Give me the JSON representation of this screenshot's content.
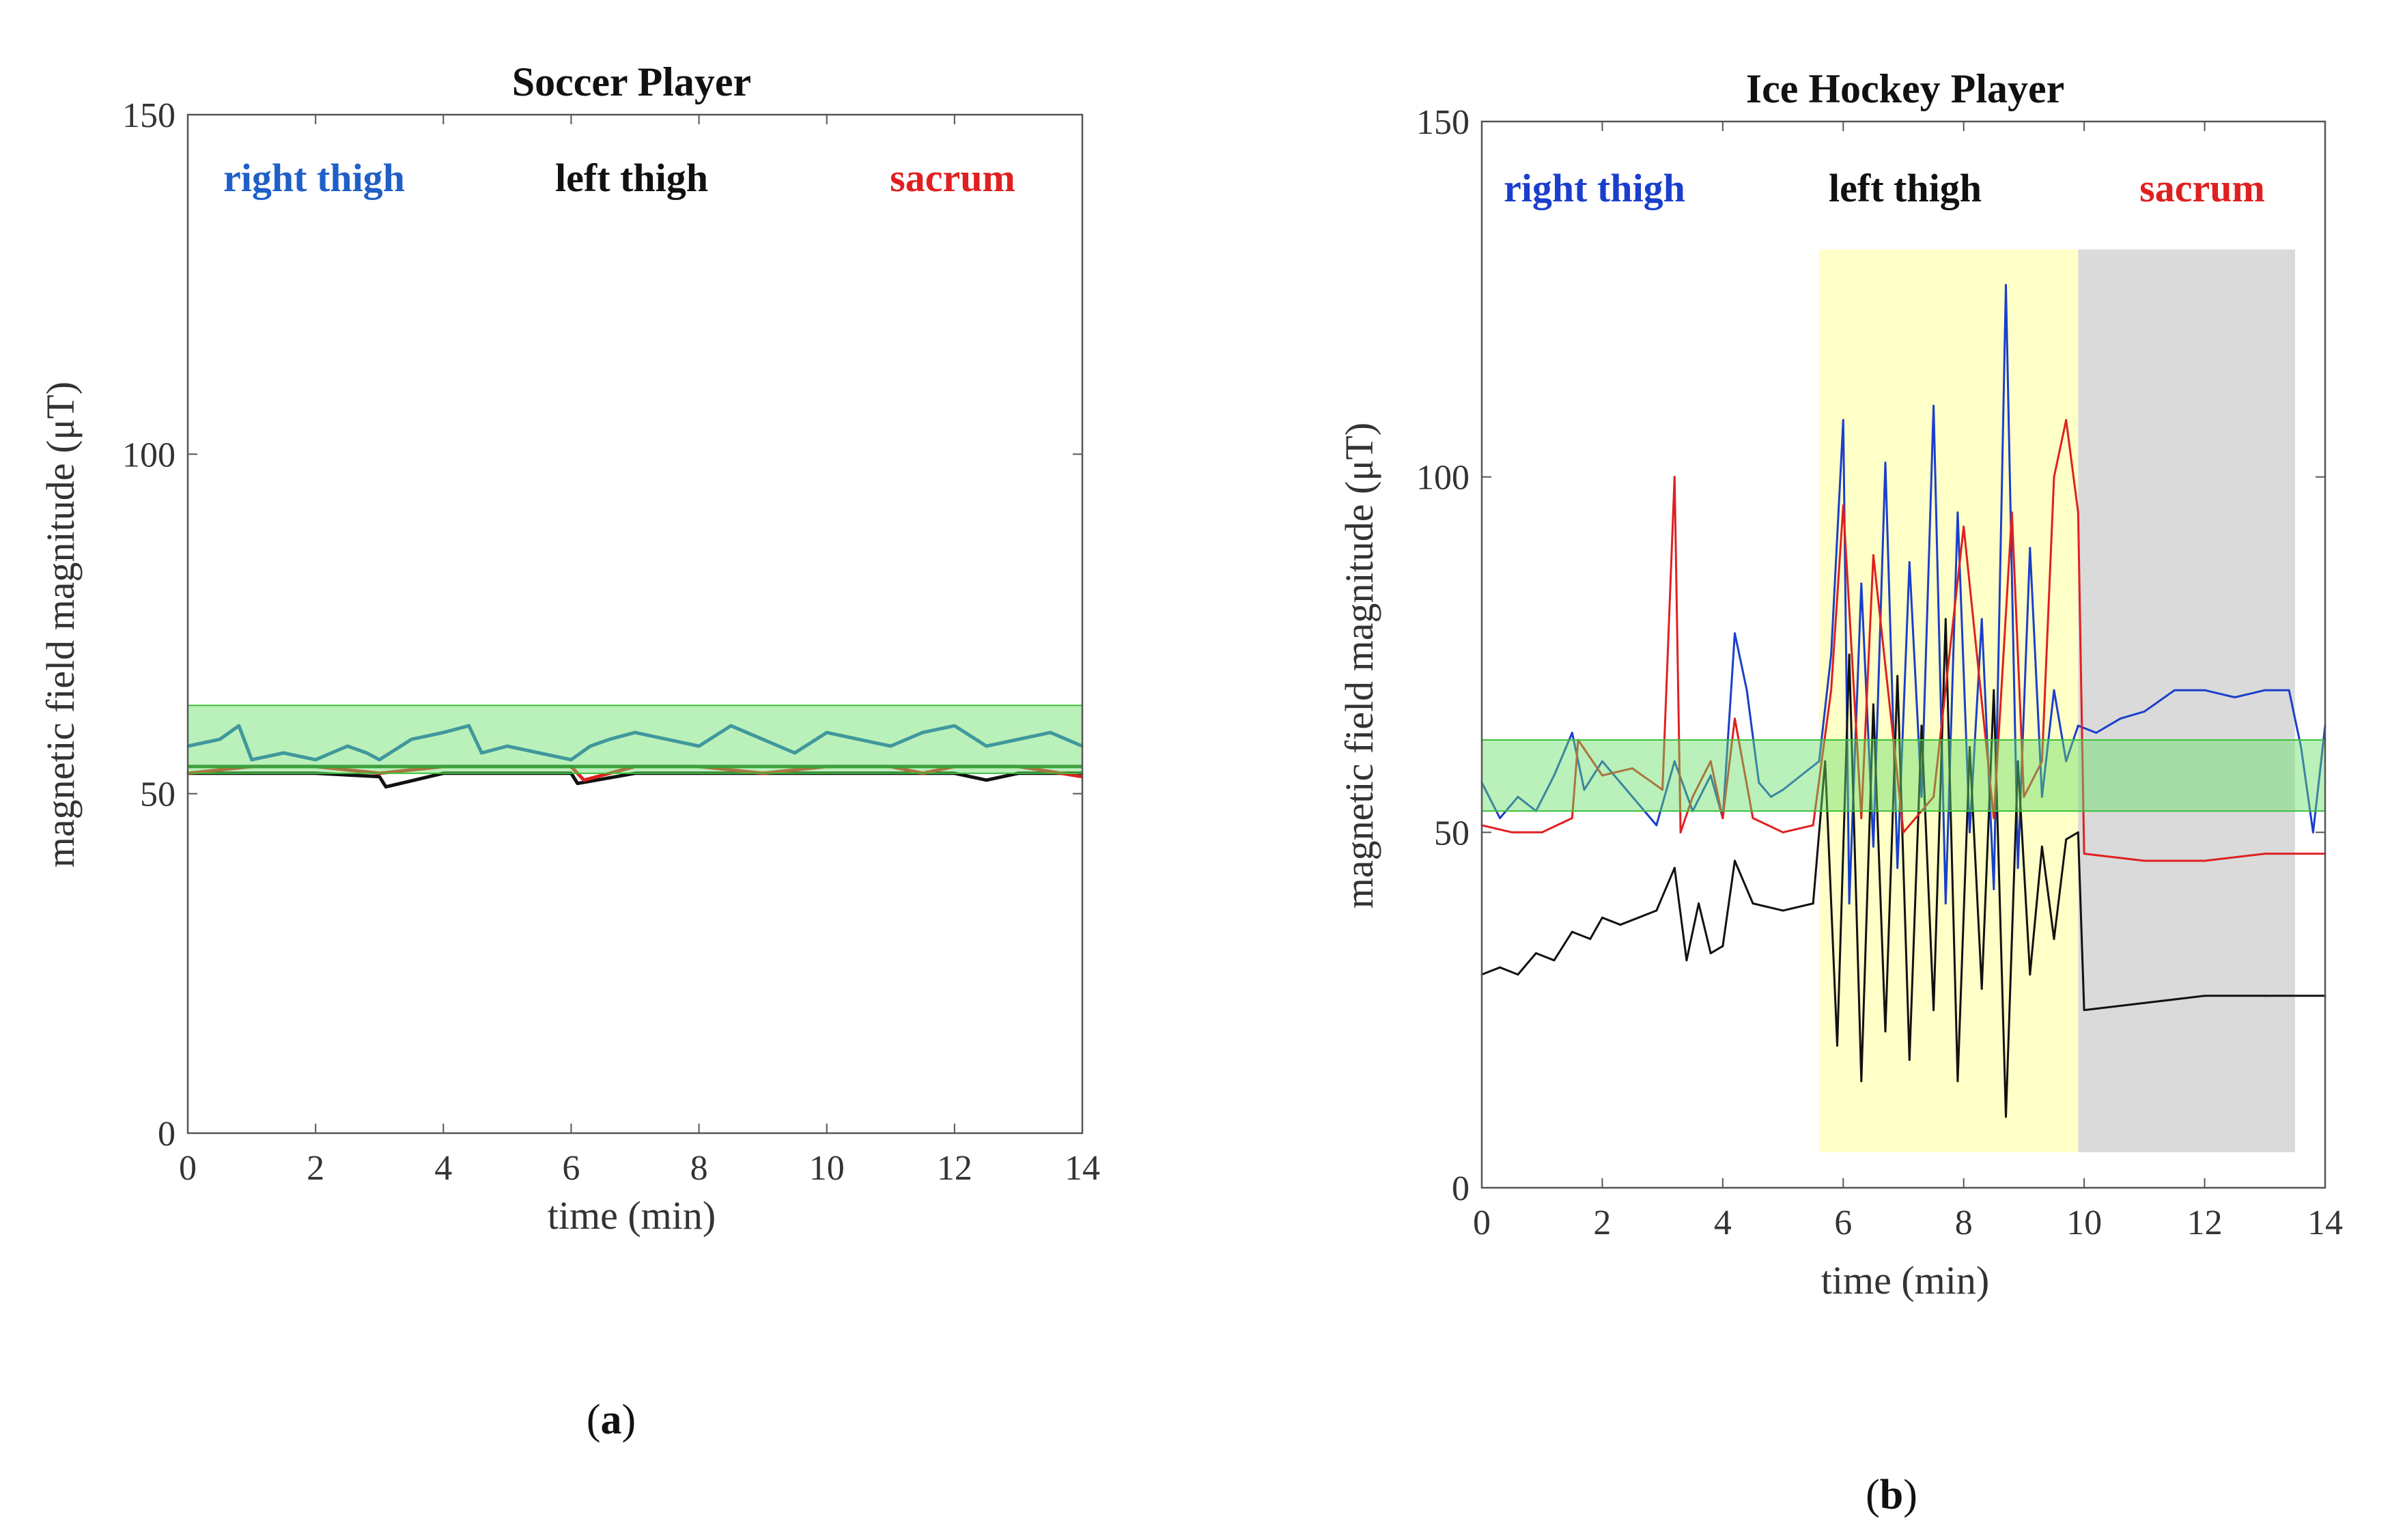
{
  "figure": {
    "panels": [
      {
        "label_open": "(",
        "label_letter": "a",
        "label_close": ")"
      },
      {
        "label_open": "(",
        "label_letter": "b",
        "label_close": ")"
      }
    ]
  },
  "colors": {
    "right_thigh": "#1a3fcc",
    "left_thigh": "#111111",
    "sacrum": "#e02020",
    "overlap": "#a0521f",
    "soccer_right": "#1f5fc8",
    "soccer_mean": "#1a6e1a",
    "normal_band": "#66dd66",
    "yellow_region": "#ffffc8",
    "gray_region": "#dadada"
  },
  "chart_data": [
    {
      "type": "line",
      "title": "Soccer Player",
      "xlabel": "time (min)",
      "ylabel": "magnetic field magnitude (μT)",
      "xlim": [
        0,
        14
      ],
      "ylim": [
        0,
        150
      ],
      "xticks": [
        0,
        2,
        4,
        6,
        8,
        10,
        12,
        14
      ],
      "yticks": [
        0,
        50,
        100,
        150
      ],
      "legend": [
        "right thigh",
        "left thigh",
        "sacrum"
      ],
      "bands": [
        {
          "name": "normal range",
          "y0": 53,
          "y1": 63
        }
      ],
      "regions": [],
      "series": [
        {
          "name": "right thigh",
          "x": [
            0,
            0.5,
            0.8,
            1,
            1.5,
            2,
            2.5,
            2.8,
            3,
            3.5,
            4,
            4.4,
            4.6,
            5,
            5.5,
            6,
            6.3,
            6.6,
            7,
            7.5,
            8,
            8.5,
            9,
            9.5,
            10,
            10.5,
            11,
            11.5,
            12,
            12.5,
            13,
            13.5,
            14
          ],
          "values": [
            57,
            58,
            60,
            55,
            56,
            55,
            57,
            56,
            55,
            58,
            59,
            60,
            56,
            57,
            56,
            55,
            57,
            58,
            59,
            58,
            57,
            60,
            58,
            56,
            59,
            58,
            57,
            59,
            60,
            57,
            58,
            59,
            57
          ]
        },
        {
          "name": "left thigh",
          "x": [
            0,
            1,
            2,
            3,
            3.1,
            4,
            5,
            6,
            6.1,
            7,
            8,
            9,
            10,
            11,
            12,
            12.5,
            13,
            14
          ],
          "values": [
            53,
            53,
            53,
            52.5,
            51,
            53,
            53,
            53,
            51.5,
            53,
            53,
            53,
            53,
            53,
            53,
            52,
            53,
            53
          ]
        },
        {
          "name": "sacrum",
          "x": [
            0,
            1,
            2,
            3,
            4,
            5,
            6,
            6.2,
            7,
            8,
            9,
            10,
            11,
            11.5,
            12,
            13,
            14
          ],
          "values": [
            53,
            54,
            54,
            53,
            54,
            54,
            54,
            52,
            54,
            54,
            53,
            54,
            54,
            53,
            54,
            54,
            52.5
          ]
        }
      ]
    },
    {
      "type": "line",
      "title": "Ice Hockey Player",
      "xlabel": "time (min)",
      "ylabel": "magnetic field magnitude (μT)",
      "xlim": [
        0,
        14
      ],
      "ylim": [
        0,
        150
      ],
      "xticks": [
        0,
        2,
        4,
        6,
        8,
        10,
        12,
        14
      ],
      "yticks": [
        0,
        50,
        100,
        150
      ],
      "legend": [
        "right thigh",
        "left thigh",
        "sacrum"
      ],
      "bands": [
        {
          "name": "normal range",
          "y0": 53,
          "y1": 63
        }
      ],
      "regions": [
        {
          "name": "yellow-region",
          "x0": 5.6,
          "x1": 9.9,
          "y0": 5,
          "y1": 132
        },
        {
          "name": "gray-region",
          "x0": 9.9,
          "x1": 13.5,
          "y0": 5,
          "y1": 132
        }
      ],
      "series": [
        {
          "name": "right thigh",
          "x": [
            0,
            0.3,
            0.6,
            0.9,
            1.2,
            1.5,
            1.7,
            2,
            2.3,
            2.6,
            2.9,
            3.2,
            3.5,
            3.8,
            4,
            4.2,
            4.4,
            4.6,
            4.8,
            5,
            5.3,
            5.6,
            5.8,
            6,
            6.1,
            6.3,
            6.5,
            6.7,
            6.9,
            7.1,
            7.3,
            7.5,
            7.7,
            7.9,
            8.1,
            8.3,
            8.5,
            8.7,
            8.9,
            9.1,
            9.3,
            9.5,
            9.7,
            9.9,
            10.2,
            10.6,
            11,
            11.5,
            12,
            12.5,
            13,
            13.4,
            13.6,
            13.8,
            14
          ],
          "values": [
            57,
            52,
            55,
            53,
            58,
            64,
            56,
            60,
            57,
            54,
            51,
            60,
            53,
            58,
            52,
            78,
            70,
            57,
            55,
            56,
            58,
            60,
            75,
            108,
            40,
            85,
            48,
            102,
            45,
            88,
            55,
            110,
            40,
            95,
            50,
            80,
            42,
            127,
            45,
            90,
            55,
            70,
            60,
            65,
            64,
            66,
            67,
            70,
            70,
            69,
            70,
            70,
            62,
            50,
            65
          ]
        },
        {
          "name": "left thigh",
          "x": [
            0,
            0.3,
            0.6,
            0.9,
            1.2,
            1.5,
            1.8,
            2,
            2.3,
            2.6,
            2.9,
            3.2,
            3.4,
            3.6,
            3.8,
            4,
            4.2,
            4.5,
            5,
            5.5,
            5.7,
            5.9,
            6.1,
            6.3,
            6.5,
            6.7,
            6.9,
            7.1,
            7.3,
            7.5,
            7.7,
            7.9,
            8.1,
            8.3,
            8.5,
            8.7,
            8.9,
            9.1,
            9.3,
            9.5,
            9.7,
            9.9,
            10,
            11,
            12,
            13,
            14
          ],
          "values": [
            30,
            31,
            30,
            33,
            32,
            36,
            35,
            38,
            37,
            38,
            39,
            45,
            32,
            40,
            33,
            34,
            46,
            40,
            39,
            40,
            60,
            20,
            75,
            15,
            68,
            22,
            72,
            18,
            65,
            25,
            80,
            15,
            62,
            28,
            70,
            10,
            60,
            30,
            48,
            35,
            49,
            50,
            25,
            26,
            27,
            27,
            27
          ]
        },
        {
          "name": "sacrum",
          "x": [
            0,
            0.5,
            1,
            1.5,
            1.6,
            2,
            2.5,
            3,
            3.2,
            3.3,
            3.5,
            3.8,
            4,
            4.2,
            4.5,
            5,
            5.5,
            5.8,
            6,
            6.3,
            6.5,
            7,
            7.5,
            8,
            8.5,
            8.8,
            9,
            9.3,
            9.5,
            9.7,
            9.9,
            10,
            11,
            12,
            13,
            14
          ],
          "values": [
            51,
            50,
            50,
            52,
            63,
            58,
            59,
            56,
            100,
            50,
            55,
            60,
            52,
            66,
            52,
            50,
            51,
            70,
            96,
            52,
            89,
            50,
            55,
            93,
            52,
            95,
            55,
            60,
            100,
            108,
            95,
            47,
            46,
            46,
            47,
            47
          ]
        }
      ]
    }
  ]
}
